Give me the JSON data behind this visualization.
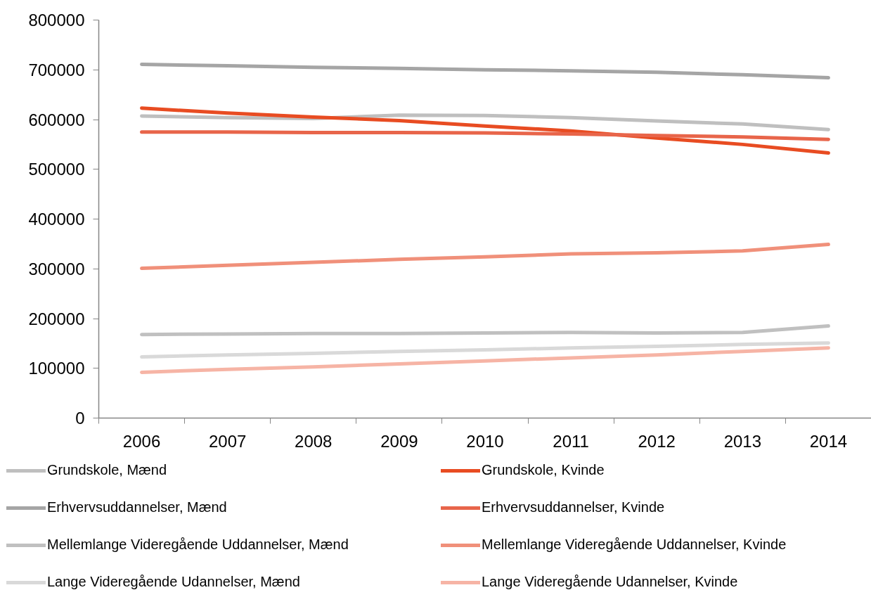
{
  "chart_data": {
    "type": "line",
    "categories": [
      "2006",
      "2007",
      "2008",
      "2009",
      "2010",
      "2011",
      "2012",
      "2013",
      "2014"
    ],
    "ylim": [
      0,
      800000
    ],
    "yticks": [
      0,
      100000,
      200000,
      300000,
      400000,
      500000,
      600000,
      700000,
      800000
    ],
    "grid": false,
    "legend": "bottom",
    "line_style": "solid",
    "series": [
      {
        "name": "Grundskole, Mænd",
        "color": "#bfbfbf",
        "values": [
          607000,
          604000,
          602000,
          609000,
          608000,
          604000,
          597000,
          591000,
          580000
        ]
      },
      {
        "name": "Grundskole, Kvinde",
        "color": "#e84c22",
        "values": [
          623000,
          613000,
          605000,
          598000,
          587000,
          577000,
          563000,
          550000,
          533000
        ]
      },
      {
        "name": "Erhvervsuddannelser, Mænd",
        "color": "#a5a5a5",
        "values": [
          711000,
          708000,
          705000,
          703000,
          700000,
          698000,
          695000,
          690000,
          684000
        ]
      },
      {
        "name": "Erhvervsuddannelser, Kvinde",
        "color": "#e8654a",
        "values": [
          575000,
          575000,
          574000,
          574000,
          573000,
          571000,
          568000,
          565000,
          560000
        ]
      },
      {
        "name": "Mellemlange Videregående Uddannelser, Mænd",
        "color": "#c0c0c0",
        "values": [
          168000,
          169000,
          170000,
          170000,
          171000,
          172000,
          171000,
          172000,
          185000
        ]
      },
      {
        "name": "Mellemlange Videregående Uddannelser, Kvinde",
        "color": "#f0907a",
        "values": [
          301000,
          307000,
          313000,
          319000,
          324000,
          330000,
          332000,
          336000,
          349000
        ]
      },
      {
        "name": "Lange Videregående Udannelser, Mænd",
        "color": "#d9d9d9",
        "values": [
          123000,
          127000,
          130000,
          134000,
          137000,
          141000,
          144000,
          148000,
          151000
        ]
      },
      {
        "name": "Lange Videregående Udannelser, Kvinde",
        "color": "#f6b4a5",
        "values": [
          92000,
          98000,
          103000,
          109000,
          115000,
          121000,
          127000,
          134000,
          141000
        ]
      }
    ]
  }
}
